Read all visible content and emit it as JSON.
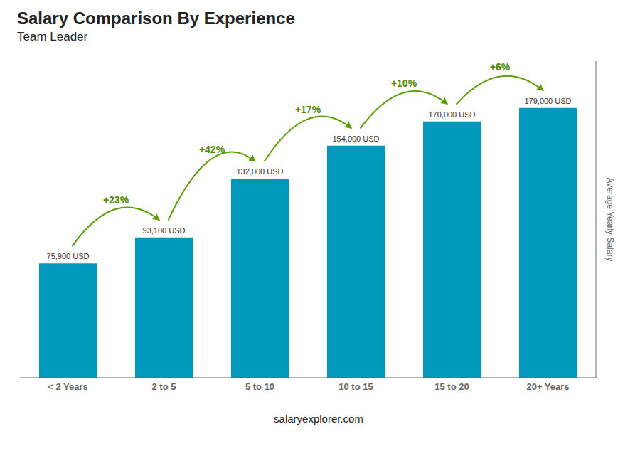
{
  "chart_data": {
    "type": "bar",
    "title": "Salary Comparison By Experience",
    "subtitle": "Team Leader",
    "ylabel": "Average Yearly Salary",
    "footer": "salaryexplorer.com",
    "categories": [
      "< 2 Years",
      "2 to 5",
      "5 to 10",
      "10 to 15",
      "15 to 20",
      "20+ Years"
    ],
    "values": [
      75900,
      93100,
      132000,
      154000,
      170000,
      179000
    ],
    "value_labels": [
      "75,900 USD",
      "93,100 USD",
      "132,000 USD",
      "154,000 USD",
      "170,000 USD",
      "179,000 USD"
    ],
    "data_labels": true,
    "change_labels": [
      "+23%",
      "+42%",
      "+17%",
      "+10%",
      "+6%"
    ],
    "color": "#0099bb",
    "ylim": [
      0,
      210000
    ],
    "grid": false,
    "tick_labels": "x"
  }
}
